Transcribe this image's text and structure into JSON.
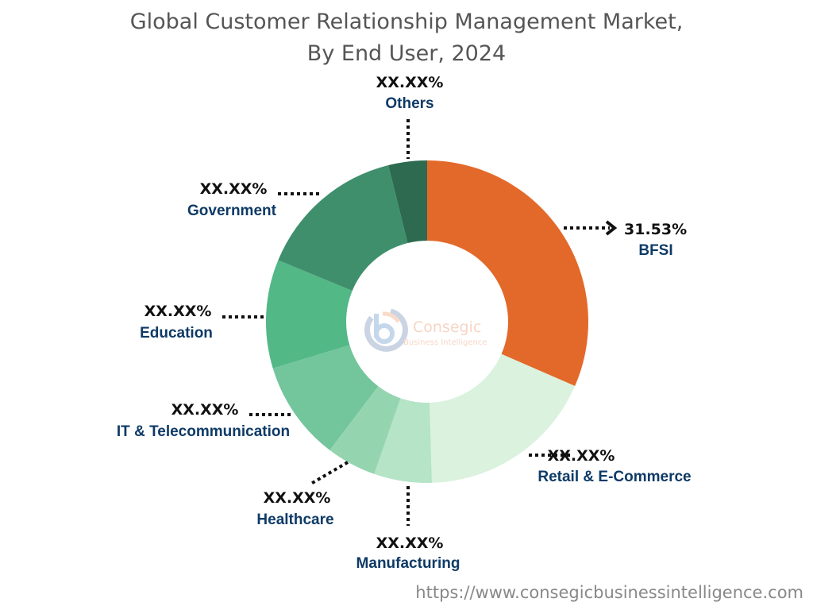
{
  "chart_data": {
    "type": "pie",
    "donut": true,
    "title": "Global Customer Relationship Management Market,",
    "subtitle": "By End User, 2024",
    "start": "top",
    "direction": "clockwise",
    "categories": [
      "BFSI",
      "Retail & E-Commerce",
      "Manufacturing",
      "Healthcare",
      "IT & Telecommunication",
      "Education",
      "Government",
      "Others"
    ],
    "values": [
      31.53,
      18.0,
      5.8,
      5.0,
      10.0,
      10.9,
      14.9,
      3.87
    ],
    "labels": [
      "31.53%",
      "XX.XX%",
      "XX.XX%",
      "XX.XX%",
      "XX.XX%",
      "XX.XX%",
      "XX.XX%",
      "XX.XX%"
    ],
    "colors": [
      "#E3692A",
      "#DBF2DE",
      "#B5E4C7",
      "#94D5B0",
      "#73C59B",
      "#52B886",
      "#3F8F6D",
      "#2D6A4F"
    ],
    "label_colors": {
      "highlight": "#E3692A",
      "default": "#0E3A66"
    }
  },
  "watermark": {
    "brand": "Consegic",
    "tagline": "Business Intelligence"
  },
  "footer": {
    "url": "https://www.consegicbusinessintelligence.com"
  }
}
